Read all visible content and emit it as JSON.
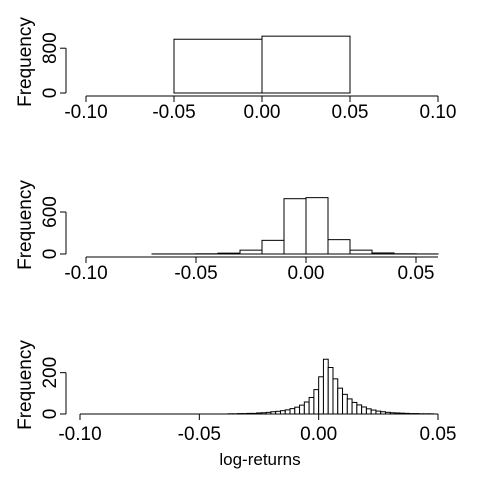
{
  "chart_data": [
    {
      "type": "bar",
      "title": "",
      "xlabel": "",
      "ylabel": "Frequency",
      "xlim": [
        -0.1,
        0.1
      ],
      "ylim": [
        0,
        1000
      ],
      "x_ticks": [
        "-0.10",
        "-0.05",
        "0.00",
        "0.05",
        "0.10"
      ],
      "y_ticks": [
        "0",
        "800"
      ],
      "bin_width": 0.05,
      "bins": [
        {
          "x0": -0.05,
          "x1": 0.0,
          "value": 960
        },
        {
          "x0": 0.0,
          "x1": 0.05,
          "value": 1015
        }
      ]
    },
    {
      "type": "bar",
      "title": "",
      "xlabel": "",
      "ylabel": "Frequency",
      "xlim": [
        -0.1,
        0.06
      ],
      "ylim": [
        0,
        800
      ],
      "x_ticks": [
        "-0.10",
        "-0.05",
        "0.00",
        "0.05"
      ],
      "y_ticks": [
        "0",
        "600"
      ],
      "bin_width": 0.01,
      "bins": [
        {
          "x0": -0.1,
          "x1": -0.09,
          "value": 0
        },
        {
          "x0": -0.09,
          "x1": -0.08,
          "value": 0
        },
        {
          "x0": -0.08,
          "x1": -0.07,
          "value": 0
        },
        {
          "x0": -0.07,
          "x1": -0.06,
          "value": 1
        },
        {
          "x0": -0.06,
          "x1": -0.05,
          "value": 1
        },
        {
          "x0": -0.05,
          "x1": -0.04,
          "value": 3
        },
        {
          "x0": -0.04,
          "x1": -0.03,
          "value": 12
        },
        {
          "x0": -0.03,
          "x1": -0.02,
          "value": 55
        },
        {
          "x0": -0.02,
          "x1": -0.01,
          "value": 195
        },
        {
          "x0": -0.01,
          "x1": 0.0,
          "value": 790
        },
        {
          "x0": 0.0,
          "x1": 0.01,
          "value": 805
        },
        {
          "x0": 0.01,
          "x1": 0.02,
          "value": 205
        },
        {
          "x0": 0.02,
          "x1": 0.03,
          "value": 55
        },
        {
          "x0": 0.03,
          "x1": 0.04,
          "value": 15
        },
        {
          "x0": 0.04,
          "x1": 0.05,
          "value": 3
        },
        {
          "x0": 0.05,
          "x1": 0.06,
          "value": 1
        }
      ]
    },
    {
      "type": "bar",
      "title": "",
      "xlabel": "log-returns",
      "ylabel": "Frequency",
      "xlim": [
        -0.1,
        0.05
      ],
      "ylim": [
        0,
        300
      ],
      "x_ticks": [
        "-0.10",
        "-0.05",
        "0.00",
        "0.05"
      ],
      "y_ticks": [
        "0",
        "200"
      ],
      "bin_width": 0.002,
      "bins_start": -0.1,
      "counts": [
        0,
        0,
        0,
        0,
        0,
        0,
        0,
        0,
        0,
        0,
        0,
        0,
        0,
        0,
        0,
        0,
        0,
        0,
        0,
        0,
        0,
        0,
        0,
        0,
        0,
        0,
        0,
        0,
        0,
        0,
        0,
        1,
        1,
        2,
        2,
        3,
        3,
        5,
        6,
        8,
        11,
        13,
        16,
        20,
        26,
        33,
        43,
        58,
        80,
        118,
        180,
        265,
        225,
        170,
        125,
        95,
        73,
        56,
        44,
        34,
        25,
        19,
        14,
        11,
        8,
        6,
        5,
        4,
        3,
        2,
        2,
        1,
        1,
        1,
        0,
        0
      ]
    }
  ]
}
